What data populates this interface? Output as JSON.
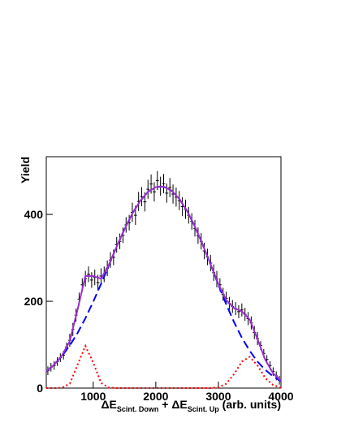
{
  "chart_data": [
    {
      "type": "histogram",
      "ylabel": "Yield",
      "xlabel": [
        "ΔE",
        "Scint. Down",
        " + ΔE",
        "Scint. Up",
        " (arb. units)"
      ],
      "bins": [
        250,
        300,
        350,
        400,
        450,
        500,
        550,
        600,
        650,
        700,
        750,
        800,
        850,
        900,
        950,
        1000,
        1050,
        1100,
        1150,
        1200,
        1250,
        1300,
        1350,
        1400,
        1450,
        1500,
        1550,
        1600,
        1650,
        1700,
        1750,
        1800,
        1850,
        1900,
        1950,
        2000,
        2050,
        2100,
        2150,
        2200,
        2250,
        2300,
        2350,
        2400,
        2450,
        2500,
        2550,
        2600,
        2650,
        2700,
        2750,
        2800,
        2850,
        2900,
        2950,
        3000,
        3050,
        3100,
        3150,
        3200,
        3250,
        3300,
        3350,
        3400,
        3450,
        3500,
        3550,
        3600,
        3650,
        3700,
        3750,
        3800,
        3850,
        3900,
        3950,
        4000
      ],
      "values": [
        40,
        48,
        52,
        61,
        70,
        76,
        95,
        110,
        135,
        168,
        205,
        238,
        252,
        262,
        249,
        255,
        243,
        258,
        262,
        276,
        295,
        301,
        330,
        338,
        352,
        376,
        381,
        405,
        398,
        430,
        441,
        429,
        458,
        470,
        452,
        478,
        465,
        471,
        449,
        462,
        447,
        440,
        432,
        418,
        412,
        398,
        384,
        368,
        351,
        338,
        316,
        302,
        288,
        266,
        251,
        238,
        216,
        207,
        195,
        188,
        183,
        176,
        180,
        170,
        160,
        150,
        128,
        114,
        98,
        80,
        66,
        52,
        38,
        28,
        18
      ],
      "errors": [
        10,
        10,
        10,
        10,
        10,
        10,
        10,
        15,
        15,
        15,
        15,
        15,
        18,
        18,
        18,
        18,
        18,
        18,
        18,
        18,
        18,
        18,
        18,
        18,
        18,
        18,
        18,
        22,
        22,
        22,
        22,
        22,
        22,
        22,
        22,
        22,
        22,
        22,
        22,
        22,
        22,
        22,
        22,
        22,
        22,
        19,
        19,
        19,
        19,
        19,
        19,
        19,
        19,
        19,
        19,
        15,
        15,
        15,
        15,
        15,
        15,
        15,
        15,
        15,
        15,
        15,
        15,
        15,
        10,
        10,
        10,
        10,
        10,
        10,
        10
      ],
      "color": "#000000",
      "xlim": [
        250,
        4000
      ],
      "ylim": [
        0,
        533
      ],
      "xticks": [
        1000,
        2000,
        3000,
        4000
      ],
      "yticks": [
        0,
        200,
        400
      ]
    },
    {
      "type": "line",
      "x": [
        250,
        375,
        500,
        625,
        750,
        875,
        1000,
        1125,
        1250,
        1375,
        1500,
        1625,
        1750,
        1875,
        2000,
        2125,
        2250,
        2375,
        2500,
        2625,
        2750,
        2875,
        3000,
        3125,
        3250,
        3375,
        3500,
        3625,
        3750,
        3875,
        4000
      ],
      "xlim": [
        250,
        4000
      ],
      "ylim": [
        0,
        533
      ],
      "series": [
        {
          "color": "#ff0000",
          "dash": "dotted",
          "values": [
            0,
            0,
            1,
            10,
            54,
            97,
            59,
            12,
            1,
            0,
            0,
            0,
            0,
            0,
            0,
            0,
            0,
            0,
            0,
            0,
            0,
            0,
            2,
            10,
            32,
            61,
            72,
            52,
            23,
            7,
            1
          ]
        },
        {
          "color": "#0000ff",
          "dash": "dashed",
          "values": [
            38,
            54,
            74,
            98,
            127,
            161,
            199,
            240,
            283,
            326,
            366,
            402,
            431,
            452,
            463,
            464,
            455,
            436,
            408,
            372,
            330,
            285,
            238,
            193,
            152,
            116,
            86,
            61,
            42,
            27,
            16
          ]
        },
        {
          "color": "#9a2fd0",
          "dash": "solid",
          "values": [
            38,
            54,
            75,
            108,
            181,
            258,
            258,
            252,
            284,
            326,
            366,
            402,
            431,
            452,
            463,
            464,
            455,
            436,
            408,
            372,
            330,
            285,
            240,
            203,
            184,
            177,
            158,
            113,
            65,
            34,
            17
          ]
        }
      ]
    }
  ]
}
